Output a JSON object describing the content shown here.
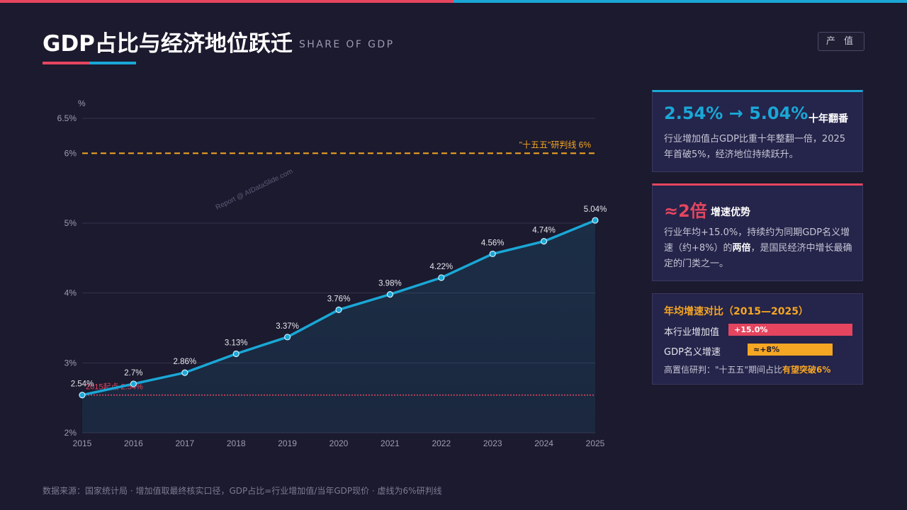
{
  "header": {
    "title": "GDP占比与经济地位跃迁",
    "subtitle": "SHARE OF GDP",
    "tag": "产 值"
  },
  "colors": {
    "accent_red": "#e5455f",
    "accent_blue": "#1aa7d6",
    "accent_orange": "#f5a623",
    "background": "#1b1a2e"
  },
  "chart_data": {
    "type": "area",
    "x": [
      "2015",
      "2016",
      "2017",
      "2018",
      "2019",
      "2020",
      "2021",
      "2022",
      "2023",
      "2024",
      "2025"
    ],
    "series": [
      {
        "values": [
          2.54,
          2.7,
          2.86,
          3.13,
          3.37,
          3.76,
          3.98,
          4.22,
          4.56,
          4.74,
          5.04
        ],
        "labels": [
          "2.54%",
          "2.7%",
          "2.86%",
          "3.13%",
          "3.37%",
          "3.76%",
          "3.98%",
          "4.22%",
          "4.56%",
          "4.74%",
          "5.04%"
        ]
      }
    ],
    "ylabel": "%",
    "ylim": [
      2,
      6.5
    ],
    "yticks": [
      2,
      3,
      4,
      5,
      6,
      6.5
    ],
    "ytick_labels": [
      "2%",
      "3%",
      "4%",
      "5%",
      "6%",
      "6.5%"
    ],
    "reference_lines": [
      {
        "y": 6,
        "label": "\"十五五\"研判线 6%",
        "color": "#f5a623",
        "style": "dashed"
      },
      {
        "y": 2.54,
        "label": "2015起点 2.54%",
        "color": "#e5455f",
        "style": "dotted"
      }
    ],
    "watermark": "Report @ AIDataSlide.com",
    "grid": true
  },
  "cards": {
    "kpi1": {
      "value": "2.54% → 5.04%",
      "suffix": "十年翻番",
      "text": "行业增加值占GDP比重十年整翻一倍，2025年首破5%，经济地位持续跃升。"
    },
    "kpi2": {
      "value": "≈2倍",
      "suffix": "增速优势",
      "text_before": "行业年均+15.0%，持续约为同期GDP名义增速（约+8%）的",
      "text_bold": "两倍",
      "text_after": "，是国民经济中增长最确定的门类之一。"
    },
    "compare": {
      "title": "年均增速对比（2015—2025）",
      "rows": [
        {
          "label": "本行业增加值",
          "value_label": "+15.0%",
          "value": 15.0
        },
        {
          "label": "GDP名义增速",
          "value_label": "≈+8%",
          "value": 8.0
        }
      ],
      "note_prefix": "高置信研判：\"十五五\"期间占比",
      "note_highlight": "有望突破6%"
    }
  },
  "footer": "数据来源：国家统计局 · 增加值取最终核实口径，GDP占比=行业增加值/当年GDP现价 · 虚线为6%研判线"
}
